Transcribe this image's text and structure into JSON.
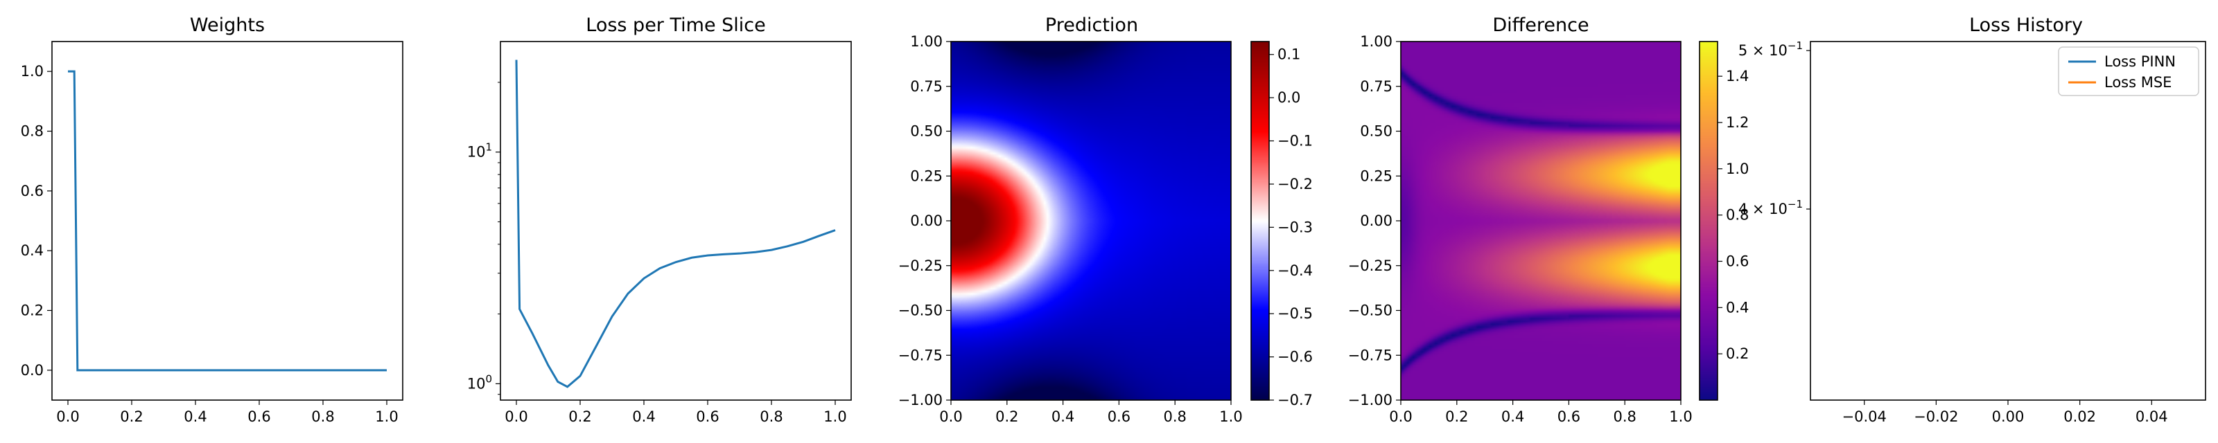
{
  "chart_data": [
    {
      "type": "line",
      "title": "Weights",
      "xlabel": "",
      "ylabel": "",
      "xlim": [
        -0.05,
        1.05
      ],
      "ylim": [
        -0.1,
        1.1
      ],
      "xticks": [
        "0.0",
        "0.2",
        "0.4",
        "0.6",
        "0.8",
        "1.0"
      ],
      "yticks": [
        "0.0",
        "0.2",
        "0.4",
        "0.6",
        "0.8",
        "1.0"
      ],
      "color": "#1f77b4",
      "x": [
        0.0,
        0.02,
        0.03,
        1.0
      ],
      "y": [
        1.0,
        1.0,
        0.0,
        0.0
      ]
    },
    {
      "type": "line",
      "title": "Loss per Time Slice",
      "xlabel": "",
      "ylabel": "",
      "yscale": "log",
      "xlim": [
        -0.05,
        1.05
      ],
      "ylim": [
        0.85,
        30
      ],
      "xticks": [
        "0.0",
        "0.2",
        "0.4",
        "0.6",
        "0.8",
        "1.0"
      ],
      "yticks": [
        "10^0",
        "10^1"
      ],
      "color": "#1f77b4",
      "x": [
        0.0,
        0.01,
        0.05,
        0.1,
        0.13,
        0.16,
        0.2,
        0.25,
        0.3,
        0.35,
        0.4,
        0.45,
        0.5,
        0.55,
        0.6,
        0.65,
        0.7,
        0.75,
        0.8,
        0.85,
        0.9,
        0.95,
        1.0
      ],
      "y": [
        25.0,
        2.1,
        1.65,
        1.2,
        1.02,
        0.97,
        1.08,
        1.45,
        1.95,
        2.45,
        2.85,
        3.15,
        3.35,
        3.5,
        3.58,
        3.62,
        3.65,
        3.7,
        3.78,
        3.92,
        4.1,
        4.35,
        4.6
      ]
    },
    {
      "type": "heatmap",
      "title": "Prediction",
      "xlabel": "",
      "ylabel": "",
      "xlim": [
        0,
        1
      ],
      "ylim": [
        -1,
        1
      ],
      "xticks": [
        "0.0",
        "0.2",
        "0.4",
        "0.6",
        "0.8",
        "1.0"
      ],
      "yticks": [
        "1.00",
        "0.75",
        "0.50",
        "0.25",
        "0.00",
        "−0.25",
        "−0.50",
        "−0.75",
        "−1.00"
      ],
      "colormap": "seismic",
      "vmin": -0.7,
      "vmax": 0.13,
      "colorbar_ticks": [
        "0.1",
        "0.0",
        "−0.1",
        "−0.2",
        "−0.3",
        "−0.4",
        "−0.5",
        "−0.6",
        "−0.7"
      ],
      "description": "red peak ~0.1 at (x=0, y=0); white ring near x≈0.2; blue ~-0.5 elsewhere; dark ~-0.7 at y=±1 near x≈0.35"
    },
    {
      "type": "heatmap",
      "title": "Difference",
      "xlabel": "",
      "ylabel": "",
      "xlim": [
        0,
        1
      ],
      "ylim": [
        -1,
        1
      ],
      "xticks": [
        "0.0",
        "0.2",
        "0.4",
        "0.6",
        "0.8",
        "1.0"
      ],
      "yticks": [
        "1.00",
        "0.75",
        "0.50",
        "0.25",
        "0.00",
        "−0.25",
        "−0.50",
        "−0.75",
        "−1.00"
      ],
      "colormap": "plasma",
      "vmin": 0.0,
      "vmax": 1.55,
      "colorbar_ticks": [
        "1.4",
        "1.2",
        "1.0",
        "0.8",
        "0.6",
        "0.4",
        "0.2"
      ],
      "description": "two bright bands (~1.5) at y≈±0.28 growing with x; dark curves near |y|≈0.5–0.8; ~0.35 background"
    },
    {
      "type": "line",
      "title": "Loss History",
      "xlabel": "",
      "ylabel": "",
      "yscale": "log",
      "xlim": [
        -0.055,
        0.055
      ],
      "xticks": [
        "−0.04",
        "−0.02",
        "0.00",
        "0.02",
        "0.04"
      ],
      "yticks": [
        "5 × 10^−1",
        "4 × 10^−1"
      ],
      "legend_position": "upper-right",
      "series": [
        {
          "name": "Loss PINN",
          "color": "#1f77b4",
          "values": []
        },
        {
          "name": "Loss MSE",
          "color": "#ff7f0e",
          "values": []
        }
      ]
    }
  ]
}
